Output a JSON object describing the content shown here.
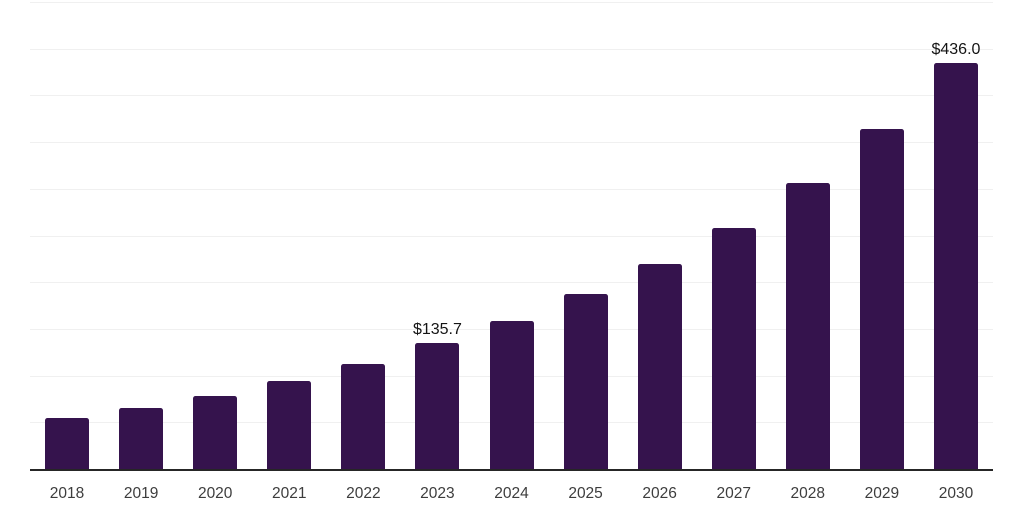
{
  "chart_data": {
    "type": "bar",
    "title": "",
    "xlabel": "",
    "ylabel": "",
    "categories": [
      "2018",
      "2019",
      "2020",
      "2021",
      "2022",
      "2023",
      "2024",
      "2025",
      "2026",
      "2027",
      "2028",
      "2029",
      "2030"
    ],
    "values": [
      56.1,
      66.3,
      79.0,
      95.4,
      113.3,
      135.7,
      159.7,
      188.1,
      220.9,
      259.0,
      307.4,
      365.0,
      436.0
    ],
    "data_labels": [
      {
        "category": "2023",
        "text": "$135.7"
      },
      {
        "category": "2030",
        "text": "$436.0"
      }
    ],
    "ylim": [
      0,
      500
    ],
    "gridline_interval": 50,
    "grid": true,
    "legend": false,
    "y_axis_labels_visible": false,
    "styles": {
      "bar_color": "#35134D",
      "axis_line_color": "#262626",
      "gridline_color": "#f0f0f0",
      "tick_label_color": "#3d3d3d",
      "data_label_color": "#141414",
      "background_color": "#ffffff"
    }
  }
}
